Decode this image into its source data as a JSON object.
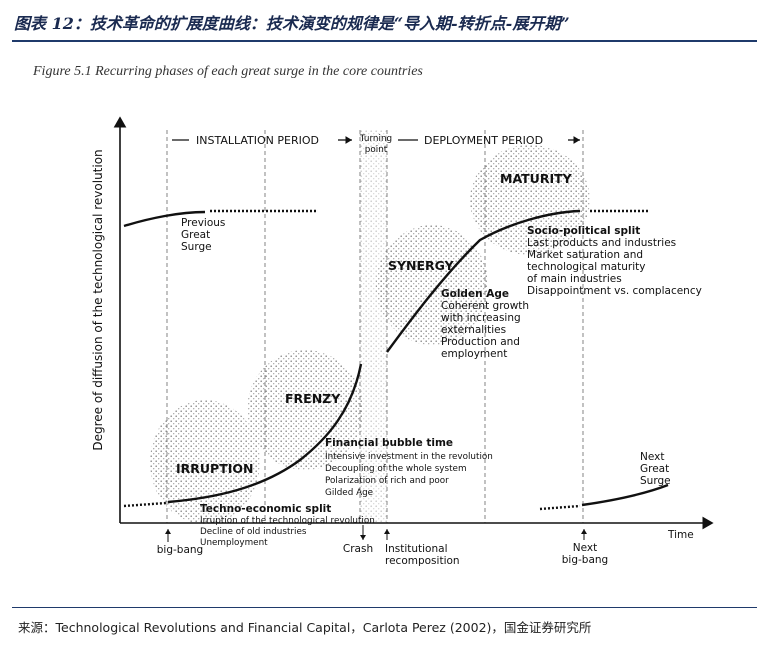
{
  "header": {
    "title": "图表 12：技术革命的扩展度曲线：技术演变的规律是“导入期-转折点-展开期”"
  },
  "figure": {
    "caption": "Figure 5.1    Recurring phases of each great surge in the core countries"
  },
  "periods": {
    "installation": "INSTALLATION PERIOD",
    "turning_point": [
      "Turning",
      "point"
    ],
    "deployment": "DEPLOYMENT PERIOD"
  },
  "axes": {
    "y_label": "Degree of diffusion of the technological revolution",
    "x_label": "Time"
  },
  "phases": {
    "irruption": "IRRUPTION",
    "frenzy": "FRENZY",
    "synergy": "SYNERGY",
    "maturity": "MATURITY"
  },
  "previous_surge": [
    "Previous",
    "Great",
    "Surge"
  ],
  "next_surge": [
    "Next",
    "Great",
    "Surge"
  ],
  "techno_economic": {
    "title": "Techno-economic split",
    "lines": [
      "Irruption of the technological revolution",
      "Decline of old industries",
      "Unemployment"
    ]
  },
  "financial_bubble": {
    "title": "Financial bubble time",
    "lines": [
      "Intensive investment in the revolution",
      "Decoupling of the whole system",
      "Polarization of rich and poor",
      "Gilded Age"
    ]
  },
  "golden_age": {
    "title": "Golden Age",
    "lines": [
      "Coherent growth",
      "with increasing",
      "externalities",
      "Production and",
      "employment"
    ]
  },
  "socio_political": {
    "title": "Socio-political split",
    "lines": [
      "Last products and industries",
      "Market saturation and",
      "technological maturity",
      "of main industries",
      "Disappointment vs. complacency"
    ]
  },
  "events": {
    "big_bang": "big-bang",
    "crash": "Crash",
    "institutional": [
      "Institutional",
      "recomposition"
    ],
    "next_big_bang": [
      "Next",
      "big-bang"
    ]
  },
  "footer": {
    "source": "来源：Technological Revolutions and Financial Capital，Carlota Perez (2002)，国金证券研究所"
  }
}
